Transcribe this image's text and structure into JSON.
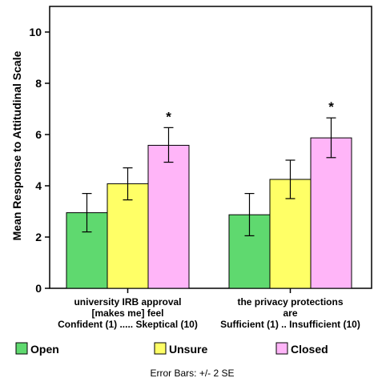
{
  "chart_data": {
    "type": "bar",
    "ylabel": "Mean Response to Attitudinal Scale",
    "ylim": [
      0,
      11
    ],
    "yticks": [
      0,
      2,
      4,
      6,
      8,
      10
    ],
    "grid": false,
    "legend_position": "bottom",
    "categories": [
      [
        "university IRB approval",
        "[makes me] feel",
        "Confident (1) ..... Skeptical (10)"
      ],
      [
        "the privacy protections",
        "are",
        "Sufficient (1) .. Insufficient (10)"
      ]
    ],
    "series": [
      {
        "name": "Open",
        "color": "#5fd96f",
        "values": [
          2.95,
          2.87
        ],
        "error_low": [
          2.2,
          2.05
        ],
        "error_high": [
          3.7,
          3.7
        ]
      },
      {
        "name": "Unsure",
        "color": "#ffff66",
        "values": [
          4.08,
          4.25
        ],
        "error_low": [
          3.45,
          3.5
        ],
        "error_high": [
          4.7,
          5.0
        ]
      },
      {
        "name": "Closed",
        "color": "#ffb5f8",
        "values": [
          5.58,
          5.87
        ],
        "error_low": [
          4.92,
          5.1
        ],
        "error_high": [
          6.27,
          6.65
        ]
      }
    ],
    "annotations": [
      {
        "text": "*",
        "category_index": 0,
        "series_index": 2
      },
      {
        "text": "*",
        "category_index": 1,
        "series_index": 2
      }
    ],
    "footnote": "Error Bars: +/- 2 SE"
  }
}
